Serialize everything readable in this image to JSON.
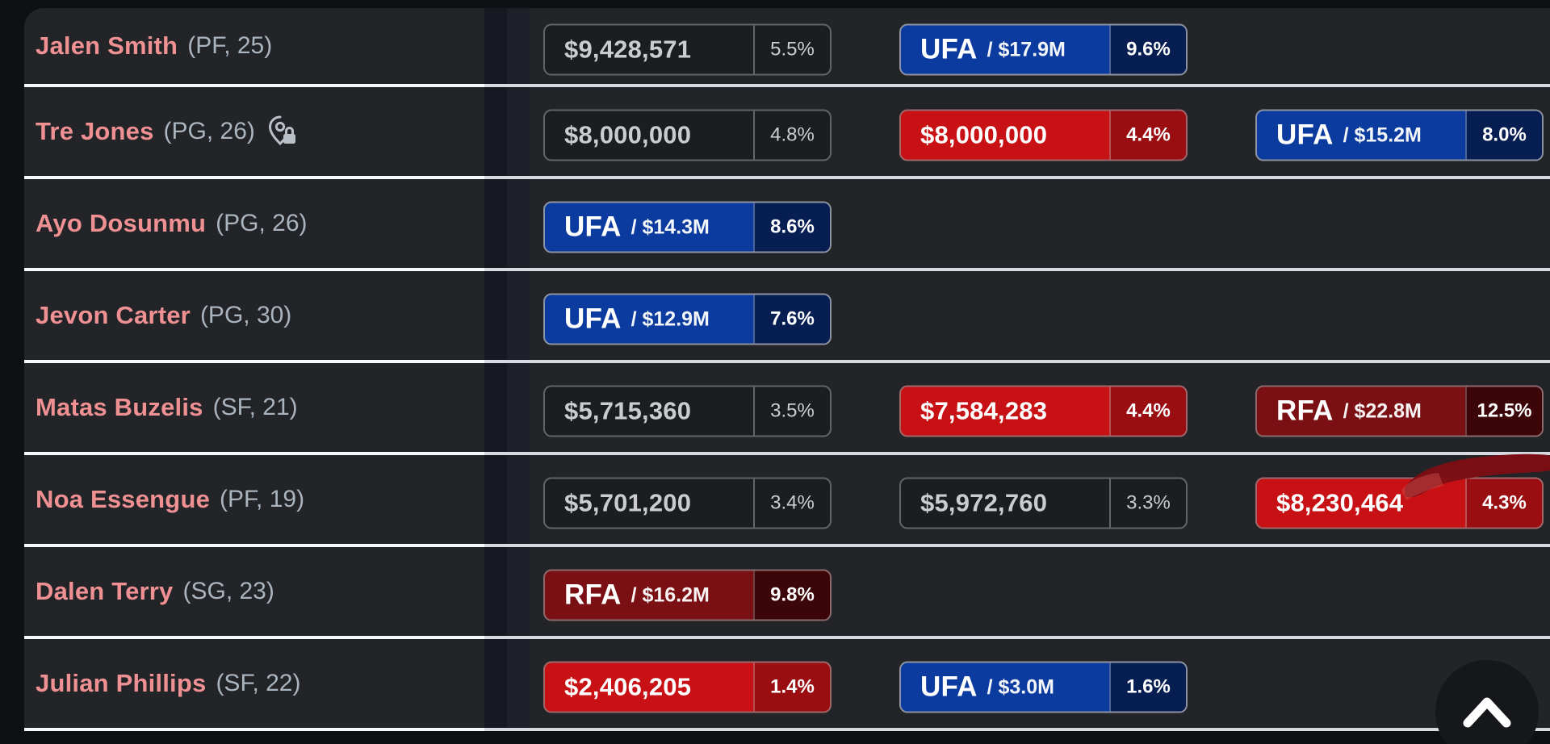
{
  "colors": {
    "page_bg": "#0f1013",
    "panel_bg": "#232428",
    "stripe1": "#161922",
    "stripe2": "#1d2028",
    "separator_bright": "#f6f8fb",
    "separator_dim": "#d7dbe1",
    "name_pink": "#ef9093",
    "meta_gray": "#a9b4be",
    "gray_pill_bg": "#1c1d20",
    "gray_pill_border": "#626468",
    "gray_pill_text": "#caccd0",
    "red": "#c81114",
    "red_dark": "#9a0d11",
    "ufa_blue": "#0c3ba0",
    "ufa_blue_dark": "#071e52",
    "rfa_maroon": "#7a1013",
    "rfa_maroon_dark": "#3c0609",
    "scribble": "#7d0f14"
  },
  "table": {
    "pill_columns": 3,
    "players": [
      {
        "name": "Jalen Smith",
        "meta": "(PF, 25)",
        "icon": null,
        "pills": [
          {
            "slot": 0,
            "style": "salary",
            "value": "$9,428,571",
            "pct": "5.5%"
          },
          {
            "slot": 1,
            "style": "ufa",
            "value": "UFA",
            "sub": "/ $17.9M",
            "pct": "9.6%"
          }
        ]
      },
      {
        "name": "Tre Jones",
        "meta": "(PG, 26)",
        "icon": "pin-lock",
        "pills": [
          {
            "slot": 0,
            "style": "salary",
            "value": "$8,000,000",
            "pct": "4.8%"
          },
          {
            "slot": 1,
            "style": "salary-red",
            "value": "$8,000,000",
            "pct": "4.4%"
          },
          {
            "slot": 2,
            "style": "ufa",
            "value": "UFA",
            "sub": "/ $15.2M",
            "pct": "8.0%"
          }
        ]
      },
      {
        "name": "Ayo Dosunmu",
        "meta": "(PG, 26)",
        "icon": null,
        "pills": [
          {
            "slot": 0,
            "style": "ufa",
            "value": "UFA",
            "sub": "/ $14.3M",
            "pct": "8.6%"
          }
        ]
      },
      {
        "name": "Jevon Carter",
        "meta": "(PG, 30)",
        "icon": null,
        "pills": [
          {
            "slot": 0,
            "style": "ufa",
            "value": "UFA",
            "sub": "/ $12.9M",
            "pct": "7.6%"
          }
        ]
      },
      {
        "name": "Matas Buzelis",
        "meta": "(SF, 21)",
        "icon": null,
        "pills": [
          {
            "slot": 0,
            "style": "salary",
            "value": "$5,715,360",
            "pct": "3.5%"
          },
          {
            "slot": 1,
            "style": "salary-red",
            "value": "$7,584,283",
            "pct": "4.4%"
          },
          {
            "slot": 2,
            "style": "rfa",
            "value": "RFA",
            "sub": "/ $22.8M",
            "pct": "12.5%"
          }
        ]
      },
      {
        "name": "Noa Essengue",
        "meta": "(PF, 19)",
        "icon": null,
        "pills": [
          {
            "slot": 0,
            "style": "salary",
            "value": "$5,701,200",
            "pct": "3.4%"
          },
          {
            "slot": 1,
            "style": "salary",
            "value": "$5,972,760",
            "pct": "3.3%"
          },
          {
            "slot": 2,
            "style": "salary-red",
            "value": "$8,230,464",
            "pct": "4.3%",
            "scribble": true
          }
        ]
      },
      {
        "name": "Dalen Terry",
        "meta": "(SG, 23)",
        "icon": null,
        "pills": [
          {
            "slot": 0,
            "style": "rfa",
            "value": "RFA",
            "sub": "/ $16.2M",
            "pct": "9.8%"
          }
        ]
      },
      {
        "name": "Julian Phillips",
        "meta": "(SF, 22)",
        "icon": null,
        "pills": [
          {
            "slot": 0,
            "style": "salary-red",
            "value": "$2,406,205",
            "pct": "1.4%"
          },
          {
            "slot": 1,
            "style": "ufa",
            "value": "UFA",
            "sub": "/ $3.0M",
            "pct": "1.6%"
          }
        ]
      }
    ]
  },
  "floating": {
    "scroll_top_icon": "chevron-up"
  }
}
